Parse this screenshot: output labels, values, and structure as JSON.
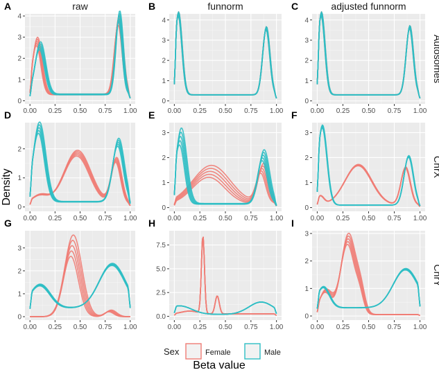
{
  "chart_data": {
    "type": "line",
    "subtype": "density-facet-grid",
    "y_axis_title": "Density",
    "x_axis_title": "Beta value",
    "column_titles": [
      "raw",
      "funnorm",
      "adjusted funnorm"
    ],
    "row_titles": [
      "Autosomes",
      "ChrX",
      "ChrY"
    ],
    "x_ticks": [
      "0.00",
      "0.25",
      "0.50",
      "0.75",
      "1.00"
    ],
    "xlim": [
      -0.05,
      1.05
    ],
    "legend": {
      "title": "Sex",
      "position": "bottom",
      "entries": [
        {
          "label": "Female",
          "color": "#F07C74"
        },
        {
          "label": "Male",
          "color": "#2EBEC4"
        }
      ]
    },
    "panels": [
      {
        "letter": "A",
        "row": 0,
        "col": 0,
        "ylim": [
          -0.15,
          4.1
        ],
        "yticks": [
          {
            "v": 0,
            "label": "0"
          },
          {
            "v": 1,
            "label": "1"
          },
          {
            "v": 2,
            "label": "2"
          },
          {
            "v": 3,
            "label": "3"
          },
          {
            "v": 4,
            "label": "4"
          }
        ],
        "series": [
          {
            "group": "Female",
            "peaks": [
              [
                0.07,
                0.045,
                2.5
              ],
              [
                0.885,
                0.04,
                3.5
              ]
            ],
            "base": 0.3,
            "fanout": 0.12
          },
          {
            "group": "Male",
            "peaks": [
              [
                0.1,
                0.05,
                2.3
              ],
              [
                0.89,
                0.035,
                3.7
              ]
            ],
            "base": 0.3,
            "fanout": 0.12
          }
        ]
      },
      {
        "letter": "B",
        "row": 0,
        "col": 1,
        "ylim": [
          -0.15,
          4.3
        ],
        "yticks": [
          {
            "v": 0,
            "label": "0"
          },
          {
            "v": 1,
            "label": "1"
          },
          {
            "v": 2,
            "label": "2"
          },
          {
            "v": 3,
            "label": "3"
          },
          {
            "v": 4,
            "label": "4"
          }
        ],
        "series": [
          {
            "group": "Female",
            "peaks": [
              [
                0.04,
                0.035,
                4.0
              ],
              [
                0.9,
                0.035,
                3.3
              ]
            ],
            "base": 0.3,
            "fanout": 0.04
          },
          {
            "group": "Male",
            "peaks": [
              [
                0.04,
                0.035,
                4.0
              ],
              [
                0.9,
                0.035,
                3.3
              ]
            ],
            "base": 0.3,
            "fanout": 0.04
          }
        ]
      },
      {
        "letter": "C",
        "row": 0,
        "col": 2,
        "ylim": [
          -0.15,
          4.3
        ],
        "yticks": [
          {
            "v": 0,
            "label": "0"
          },
          {
            "v": 1,
            "label": "1"
          },
          {
            "v": 2,
            "label": "2"
          },
          {
            "v": 3,
            "label": "3"
          },
          {
            "v": 4,
            "label": "4"
          }
        ],
        "series": [
          {
            "group": "Female",
            "peaks": [
              [
                0.04,
                0.035,
                4.0
              ],
              [
                0.9,
                0.035,
                3.35
              ]
            ],
            "base": 0.3,
            "fanout": 0.04
          },
          {
            "group": "Male",
            "peaks": [
              [
                0.04,
                0.035,
                4.0
              ],
              [
                0.9,
                0.035,
                3.35
              ]
            ],
            "base": 0.3,
            "fanout": 0.04
          }
        ]
      },
      {
        "letter": "D",
        "row": 1,
        "col": 0,
        "ylim": [
          -0.15,
          2.9
        ],
        "yticks": [
          {
            "v": 0,
            "label": "0"
          },
          {
            "v": 1,
            "label": "1"
          },
          {
            "v": 2,
            "label": "2"
          }
        ],
        "series": [
          {
            "group": "Female",
            "peaks": [
              [
                0.1,
                0.08,
                0.3
              ],
              [
                0.47,
                0.13,
                1.75
              ],
              [
                0.86,
                0.05,
                1.5
              ]
            ],
            "base": 0.1,
            "fanout": 0.1
          },
          {
            "group": "Male",
            "peaks": [
              [
                0.09,
                0.06,
                2.55
              ],
              [
                0.88,
                0.055,
                2.05
              ]
            ],
            "base": 0.18,
            "fanout": 0.12
          }
        ]
      },
      {
        "letter": "E",
        "row": 1,
        "col": 1,
        "ylim": [
          -0.15,
          3.4
        ],
        "yticks": [
          {
            "v": 0,
            "label": "0"
          },
          {
            "v": 1,
            "label": "1"
          },
          {
            "v": 2,
            "label": "2"
          },
          {
            "v": 3,
            "label": "3"
          }
        ],
        "series": [
          {
            "group": "Female",
            "peaks": [
              [
                0.35,
                0.17,
                1.3
              ],
              [
                0.86,
                0.05,
                1.4
              ]
            ],
            "base": 0.15,
            "fanout": 0.28
          },
          {
            "group": "Male",
            "peaks": [
              [
                0.06,
                0.05,
                2.7
              ],
              [
                0.87,
                0.05,
                1.95
              ]
            ],
            "base": 0.15,
            "fanout": 0.2
          }
        ]
      },
      {
        "letter": "F",
        "row": 1,
        "col": 2,
        "ylim": [
          -0.15,
          3.4
        ],
        "yticks": [
          {
            "v": 0,
            "label": "0"
          },
          {
            "v": 1,
            "label": "1"
          },
          {
            "v": 2,
            "label": "2"
          },
          {
            "v": 3,
            "label": "3"
          }
        ],
        "series": [
          {
            "group": "Female",
            "peaks": [
              [
                0.03,
                0.035,
                0.35
              ],
              [
                0.4,
                0.13,
                1.6
              ],
              [
                0.86,
                0.045,
                1.5
              ]
            ],
            "base": 0.1,
            "fanout": 0.03
          },
          {
            "group": "Male",
            "peaks": [
              [
                0.05,
                0.045,
                3.15
              ],
              [
                0.89,
                0.045,
                1.95
              ]
            ],
            "base": 0.1,
            "fanout": 0.03
          }
        ]
      },
      {
        "letter": "G",
        "row": 2,
        "col": 0,
        "ylim": [
          -0.15,
          3.75
        ],
        "yticks": [
          {
            "v": 0,
            "label": "0"
          },
          {
            "v": 1,
            "label": "1"
          },
          {
            "v": 2,
            "label": "2"
          },
          {
            "v": 3,
            "label": "3"
          }
        ],
        "series": [
          {
            "group": "Female",
            "peaks": [
              [
                0.42,
                0.08,
                3.1
              ],
              [
                0.8,
                0.05,
                0.25
              ]
            ],
            "base": 0.0,
            "fanout": 0.25
          },
          {
            "group": "Male",
            "peaks": [
              [
                0.1,
                0.1,
                1.0
              ],
              [
                0.82,
                0.13,
                1.9
              ]
            ],
            "base": 0.38,
            "fanout": 0.05
          }
        ]
      },
      {
        "letter": "H",
        "row": 2,
        "col": 1,
        "ylim": [
          -0.4,
          9.0
        ],
        "yticks": [
          {
            "v": 0,
            "label": "0.0"
          },
          {
            "v": 2.5,
            "label": "2.5"
          },
          {
            "v": 5,
            "label": "5.0"
          },
          {
            "v": 7.5,
            "label": "7.5"
          }
        ],
        "series": [
          {
            "group": "Female",
            "peaks": [
              [
                0.28,
                0.015,
                8.2
              ],
              [
                0.42,
                0.02,
                1.9
              ],
              [
                0.15,
                0.08,
                0.3
              ]
            ],
            "base": 0.25,
            "fanout": 0.0
          },
          {
            "group": "Male",
            "peaks": [
              [
                0.05,
                0.12,
                0.9
              ],
              [
                0.85,
                0.12,
                1.3
              ]
            ],
            "base": 0.2,
            "fanout": 0.0
          }
        ]
      },
      {
        "letter": "I",
        "row": 2,
        "col": 2,
        "ylim": [
          -0.15,
          3.1
        ],
        "yticks": [
          {
            "v": 0,
            "label": "0"
          },
          {
            "v": 1,
            "label": "1"
          },
          {
            "v": 2,
            "label": "2"
          },
          {
            "v": 3,
            "label": "3"
          }
        ],
        "series": [
          {
            "group": "Female",
            "peaks": [
              [
                0.3,
                0.07,
                2.75
              ],
              [
                0.08,
                0.06,
                0.85
              ],
              [
                0.42,
                0.04,
                0.6
              ]
            ],
            "base": 0.05,
            "fanout": 0.12
          },
          {
            "group": "Male",
            "peaks": [
              [
                0.06,
                0.06,
                0.75
              ],
              [
                0.86,
                0.12,
                1.4
              ]
            ],
            "base": 0.3,
            "fanout": 0.04
          }
        ]
      }
    ]
  }
}
